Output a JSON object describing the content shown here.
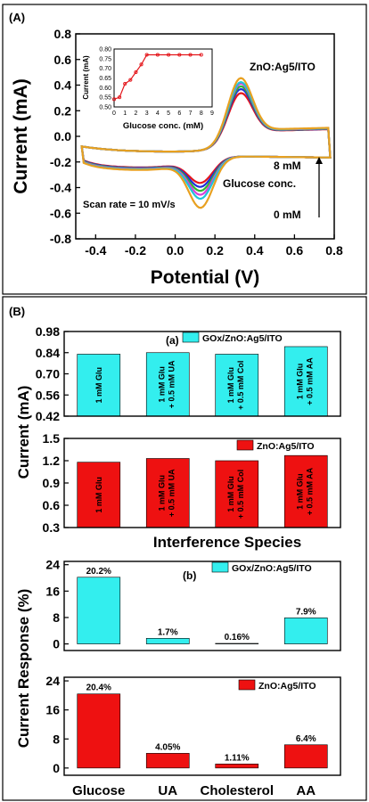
{
  "chart_data": [
    {
      "id": "panelA",
      "type": "line",
      "panel_label": "(A)",
      "xlabel": "Potential (V)",
      "ylabel": "Current (mA)",
      "xlim": [
        -0.5,
        0.8
      ],
      "ylim": [
        -0.8,
        0.8
      ],
      "xticks": [
        -0.4,
        -0.2,
        0.0,
        0.2,
        0.4,
        0.6,
        0.8
      ],
      "yticks": [
        -0.8,
        -0.6,
        -0.4,
        -0.2,
        0.0,
        0.2,
        0.4,
        0.6,
        0.8
      ],
      "annotations": {
        "electrode": "ZnO:Ag5/ITO",
        "top_conc": "8 mM",
        "glucose": "Glucose conc.",
        "bottom_conc": "0 mM",
        "scan_rate": "Scan rate = 10 mV/s"
      },
      "series": [
        {
          "color": "#e4161b",
          "anodic_peak": 0.54,
          "cathodic_peak": -0.44
        },
        {
          "color": "#1f2fd8",
          "anodic_peak": 0.57,
          "cathodic_peak": -0.47
        },
        {
          "color": "#2eb82e",
          "anodic_peak": 0.59,
          "cathodic_peak": -0.5
        },
        {
          "color": "#d93fd9",
          "anodic_peak": 0.61,
          "cathodic_peak": -0.53
        },
        {
          "color": "#20c4d8",
          "anodic_peak": 0.62,
          "cathodic_peak": -0.56
        },
        {
          "color": "#e8a020",
          "anodic_peak": 0.65,
          "cathodic_peak": -0.63
        }
      ],
      "inset": {
        "type": "line",
        "xlabel": "Glucose conc. (mM)",
        "ylabel": "Current (mA)",
        "xlim": [
          0,
          9
        ],
        "ylim": [
          0.5,
          0.8
        ],
        "xticks": [
          0,
          1,
          2,
          3,
          4,
          5,
          6,
          7,
          8,
          9
        ],
        "yticks": [
          0.5,
          0.55,
          0.6,
          0.65,
          0.7,
          0.75,
          0.8
        ],
        "x": [
          0,
          0.5,
          1,
          1.5,
          2,
          2.5,
          3,
          4,
          5,
          6,
          7,
          8
        ],
        "y": [
          0.54,
          0.55,
          0.62,
          0.64,
          0.68,
          0.72,
          0.77,
          0.77,
          0.77,
          0.77,
          0.77,
          0.77
        ],
        "color": "#e4161b"
      }
    },
    {
      "id": "panelB_a_gox",
      "type": "bar",
      "panel_label": "(B)",
      "sub_label": "(a)",
      "legend": "GOx/ZnO:Ag5/ITO",
      "color": "#33eeee",
      "categories": [
        "1 mM Glu",
        "1 mM Glu + 0.5 mM UA",
        "1 mM Glu + 0.5 mM Col",
        "1 mM Glu + 0.5 mM AA"
      ],
      "category_lines": [
        [
          "1 mM Glu"
        ],
        [
          "1 mM Glu",
          "+ 0.5 mM UA"
        ],
        [
          "1 mM Glu",
          "+ 0.5 mM Col"
        ],
        [
          "1 mM Glu",
          "+ 0.5 mM AA"
        ]
      ],
      "values": [
        0.83,
        0.84,
        0.83,
        0.88
      ],
      "ylim": [
        0.42,
        0.98
      ],
      "yticks": [
        "0.98",
        "0.84",
        "0.70",
        "0.56",
        "0.42"
      ]
    },
    {
      "id": "panelB_a_zno",
      "type": "bar",
      "legend": "ZnO:Ag5/ITO",
      "color": "#ee1111",
      "categories": [
        "1 mM Glu",
        "1 mM Glu + 0.5 mM UA",
        "1 mM Glu + 0.5 mM Col",
        "1 mM Glu + 0.5 mM AA"
      ],
      "category_lines": [
        [
          "1 mM Glu"
        ],
        [
          "1 mM Glu",
          "+ 0.5 mM UA"
        ],
        [
          "1 mM Glu",
          "+ 0.5 mM Col"
        ],
        [
          "1 mM Glu",
          "+ 0.5 mM AA"
        ]
      ],
      "values": [
        1.18,
        1.23,
        1.2,
        1.27
      ],
      "ylim": [
        0.3,
        1.5
      ],
      "yticks": [
        "1.5",
        "1.2",
        "0.9",
        "0.6",
        "0.3"
      ],
      "shared_ylabel": "Current (mA)",
      "xlabel": "Interference Species"
    },
    {
      "id": "panelB_b_gox",
      "type": "bar",
      "sub_label": "(b)",
      "legend": "GOx/ZnO:Ag5/ITO",
      "color": "#33eeee",
      "categories": [
        "Glucose",
        "UA",
        "Cholesterol",
        "AA"
      ],
      "values": [
        20.2,
        1.7,
        0.16,
        7.9
      ],
      "value_labels": [
        "20.2%",
        "1.7%",
        "0.16%",
        "7.9%"
      ],
      "ylim": [
        -2,
        25
      ],
      "yticks": [
        "24",
        "16",
        "8",
        "0"
      ]
    },
    {
      "id": "panelB_b_zno",
      "type": "bar",
      "legend": "ZnO:Ag5/ITO",
      "color": "#ee1111",
      "categories": [
        "Glucose",
        "UA",
        "Cholesterol",
        "AA"
      ],
      "values": [
        20.4,
        4.05,
        1.11,
        6.4
      ],
      "value_labels": [
        "20.4%",
        "4.05%",
        "1.11%",
        "6.4%"
      ],
      "ylim": [
        -2,
        25
      ],
      "yticks": [
        "24",
        "16",
        "8",
        "0"
      ],
      "shared_ylabel": "Current Response (%)"
    }
  ]
}
